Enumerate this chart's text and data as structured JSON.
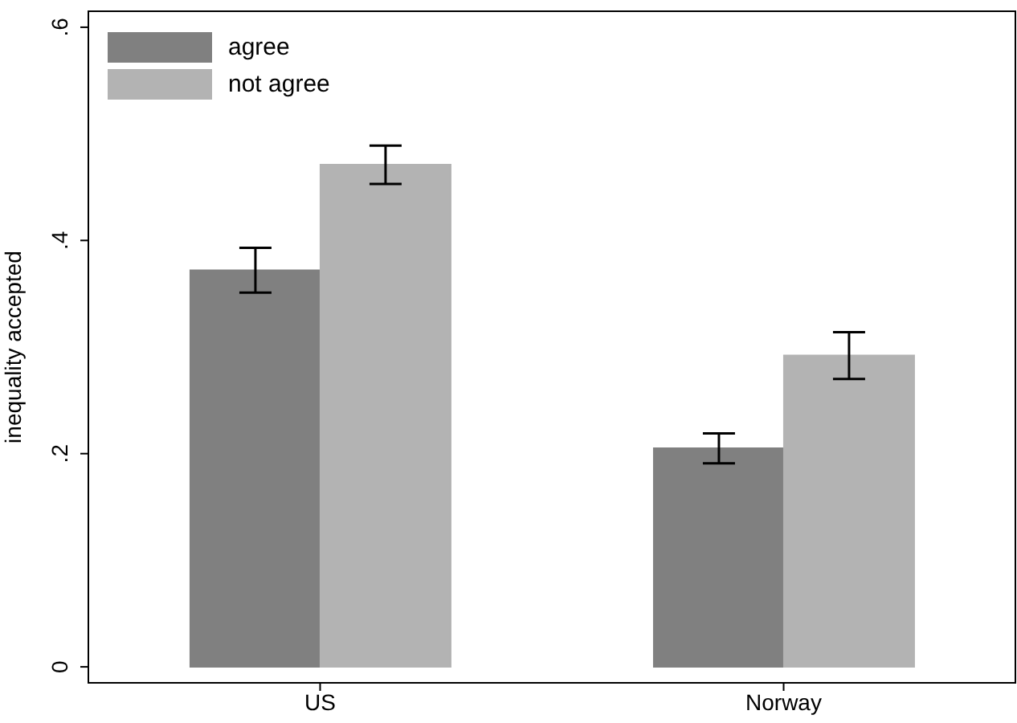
{
  "chart_data": {
    "type": "bar",
    "ylabel": "inequality accepted",
    "categories": [
      "US",
      "Norway"
    ],
    "series": [
      {
        "name": "agree",
        "color": "#808080",
        "values": [
          0.372,
          0.205
        ],
        "errors": [
          0.021,
          0.014
        ]
      },
      {
        "name": "not agree",
        "color": "#b3b3b3",
        "values": [
          0.471,
          0.292
        ],
        "errors": [
          0.018,
          0.022
        ]
      }
    ],
    "ylim": [
      -0.015,
      0.615
    ],
    "yticks": [
      {
        "value": 0,
        "label": "0"
      },
      {
        "value": 0.2,
        "label": ".2"
      },
      {
        "value": 0.4,
        "label": ".4"
      },
      {
        "value": 0.6,
        "label": ".6"
      }
    ],
    "legend": "top left",
    "grid": false
  }
}
